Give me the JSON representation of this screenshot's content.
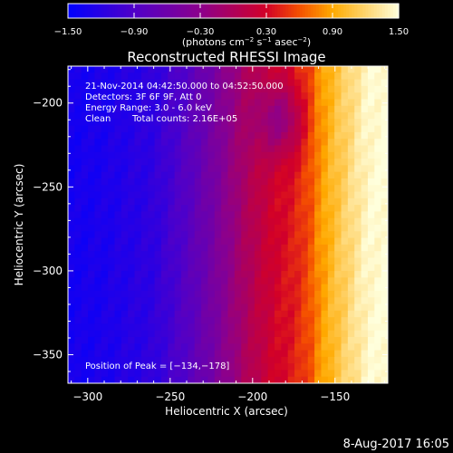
{
  "chart_data": {
    "type": "heatmap",
    "title": "Reconstructed RHESSI Image",
    "xlabel": "Heliocentric X (arcsec)",
    "ylabel": "Heliocentric Y (arcsec)",
    "xlim": [
      -312,
      -118
    ],
    "ylim": [
      -367,
      -178
    ],
    "x_ticks": [
      -300,
      -250,
      -200,
      -150
    ],
    "x_tick_labels": [
      "−300",
      "−250",
      "−200",
      "−150"
    ],
    "y_ticks": [
      -200,
      -250,
      -300,
      -350
    ],
    "y_tick_labels": [
      "−200",
      "−250",
      "−300",
      "−350"
    ],
    "colorbar": {
      "range": [
        -1.5,
        1.5
      ],
      "ticks": [
        -1.5,
        -0.9,
        -0.3,
        0.3,
        0.9,
        1.5
      ],
      "tick_labels": [
        "−1.50",
        "−0.90",
        "−0.30",
        "0.30",
        "0.90",
        "1.50"
      ],
      "unit_label": [
        "(photons cm",
        "−2",
        " s",
        "−1",
        " asec",
        "−2",
        ")"
      ]
    },
    "profile_x": [
      -312,
      -290,
      -260,
      -240,
      -225,
      -215,
      -205,
      -195,
      -185,
      -175,
      -165,
      -160,
      -150,
      -140,
      -130,
      -118
    ],
    "profile_value": [
      -1.35,
      -1.3,
      -1.15,
      -0.85,
      -0.55,
      -0.3,
      -0.05,
      0.15,
      0.3,
      0.4,
      0.6,
      0.8,
      1.05,
      1.25,
      1.45,
      1.5
    ],
    "peak": {
      "x": -134,
      "y": -178
    },
    "annotations": [
      "21-Nov-2014 04:42:50.000 to 04:52:50.000",
      "Detectors: 3F 6F 9F, Att 0",
      "Energy Range: 3.0 - 6.0 keV",
      "Clean",
      "Total counts: 2.16E+05",
      "Position of Peak = [−134,−178]"
    ],
    "grid": false,
    "colormap": "blue-purple-red-yellow"
  },
  "footer": {
    "timestamp": "8-Aug-2017 16:05"
  }
}
